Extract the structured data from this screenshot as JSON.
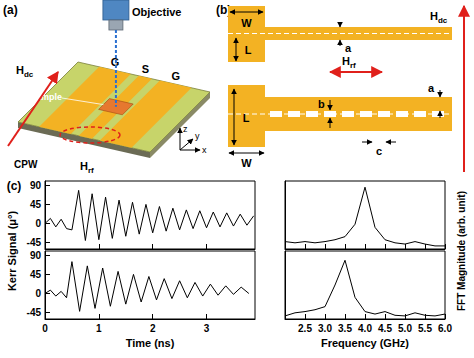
{
  "panels": {
    "a": {
      "label": "(a)",
      "objective": "Objective",
      "ground": "G",
      "signal": "S",
      "sample": "Sample",
      "cpw": "CPW",
      "h_dc": {
        "symbol": "H",
        "sub": "dc"
      },
      "h_rf": {
        "symbol": "H",
        "sub": "rf"
      },
      "axes": [
        "z",
        "y",
        "x"
      ]
    },
    "b": {
      "label": "(b)",
      "width": "W",
      "length": "L",
      "a": "a",
      "b": "b",
      "c": "c",
      "h_dc": {
        "symbol": "H",
        "sub": "dc"
      },
      "h_rf": {
        "symbol": "H",
        "sub": "rf"
      }
    },
    "c": {
      "label": "(c)",
      "y_label": "Kerr Signal (μ°)",
      "y2_label": "FFT Magnitude (arb. unit)"
    }
  },
  "chart_data": [
    {
      "type": "line",
      "color": "#000000",
      "x": [
        0,
        0.1,
        0.2,
        0.3,
        0.4,
        0.5,
        0.625,
        0.75,
        0.875,
        1.0,
        1.125,
        1.25,
        1.375,
        1.5,
        1.625,
        1.75,
        1.875,
        2.0,
        2.125,
        2.25,
        2.375,
        2.5,
        2.625,
        2.75,
        2.875,
        3.0,
        3.125,
        3.25,
        3.375,
        3.5,
        3.625,
        3.75,
        3.875
      ],
      "values": [
        0,
        12,
        -8,
        10,
        -12,
        -15,
        78,
        -40,
        70,
        -38,
        62,
        -35,
        55,
        -30,
        50,
        -25,
        45,
        -22,
        40,
        -18,
        36,
        -15,
        32,
        -12,
        30,
        -10,
        27,
        -8,
        25,
        -6,
        22,
        -4,
        18
      ],
      "xlim": [
        0,
        3.9
      ],
      "xticks": [
        0,
        1,
        2,
        3
      ],
      "ylim": [
        -60,
        100
      ],
      "yticks": [
        -45,
        0,
        45,
        90
      ],
      "tick_labels": "y"
    },
    {
      "type": "line",
      "color": "#000000",
      "x": [
        0,
        0.1,
        0.2,
        0.3,
        0.4,
        0.5,
        0.643,
        0.786,
        0.929,
        1.071,
        1.214,
        1.357,
        1.5,
        1.643,
        1.786,
        1.929,
        2.071,
        2.214,
        2.357,
        2.5,
        2.643,
        2.786,
        2.929,
        3.071,
        3.214,
        3.357,
        3.5,
        3.643,
        3.786
      ],
      "values": [
        0,
        8,
        -6,
        5,
        -10,
        75,
        -42,
        65,
        -35,
        60,
        -30,
        52,
        -25,
        45,
        -20,
        40,
        -15,
        35,
        -12,
        30,
        -10,
        26,
        -6,
        22,
        -4,
        18,
        -2,
        15,
        0
      ],
      "xlim": [
        0,
        3.9
      ],
      "xticks": [
        0,
        1,
        2,
        3
      ],
      "ylim": [
        -60,
        100
      ],
      "yticks": [
        -45,
        0,
        45,
        90
      ],
      "tick_labels": true,
      "x_label": "Time (ns)"
    },
    {
      "type": "line",
      "color": "#000000",
      "x": [
        2.0,
        2.25,
        2.5,
        2.75,
        3.0,
        3.25,
        3.5,
        3.75,
        4.0,
        4.25,
        4.5,
        4.75,
        5.0,
        5.25,
        5.5,
        5.75,
        6.0
      ],
      "values": [
        0.12,
        0.1,
        0.12,
        0.1,
        0.12,
        0.15,
        0.2,
        0.4,
        1.0,
        0.35,
        0.15,
        0.1,
        0.08,
        0.12,
        0.08,
        0.05,
        0.05
      ],
      "xlim": [
        2.0,
        6.0
      ],
      "xticks": [
        2.5,
        {
          "value": 3,
          "label": "3.0"
        },
        3.5,
        {
          "value": 4,
          "label": "4.0"
        },
        4.5,
        {
          "value": 5,
          "label": "5.0"
        },
        5.5,
        {
          "value": 6,
          "label": "6.0"
        }
      ],
      "ylim": [
        0,
        1.1
      ],
      "yticks": [],
      "tick_labels": false
    },
    {
      "type": "line",
      "color": "#000000",
      "x": [
        2.0,
        2.25,
        2.5,
        2.75,
        3.0,
        3.25,
        3.5,
        3.75,
        4.0,
        4.25,
        4.5,
        4.75,
        5.0,
        5.25,
        5.5,
        5.75,
        6.0
      ],
      "values": [
        0.05,
        0.1,
        0.12,
        0.15,
        0.2,
        0.55,
        0.95,
        0.35,
        0.12,
        0.08,
        0.12,
        0.06,
        0.05,
        0.1,
        0.06,
        0.05,
        0.08
      ],
      "xlim": [
        2.0,
        6.0
      ],
      "xticks": [
        2.5,
        {
          "value": 3,
          "label": "3.0"
        },
        3.5,
        {
          "value": 4,
          "label": "4.0"
        },
        4.5,
        {
          "value": 5,
          "label": "5.0"
        },
        5.5,
        {
          "value": 6,
          "label": "6.0"
        }
      ],
      "ylim": [
        0,
        1.1
      ],
      "yticks": [],
      "tick_labels": "x",
      "x_label": "Frequency (GHz)"
    }
  ]
}
